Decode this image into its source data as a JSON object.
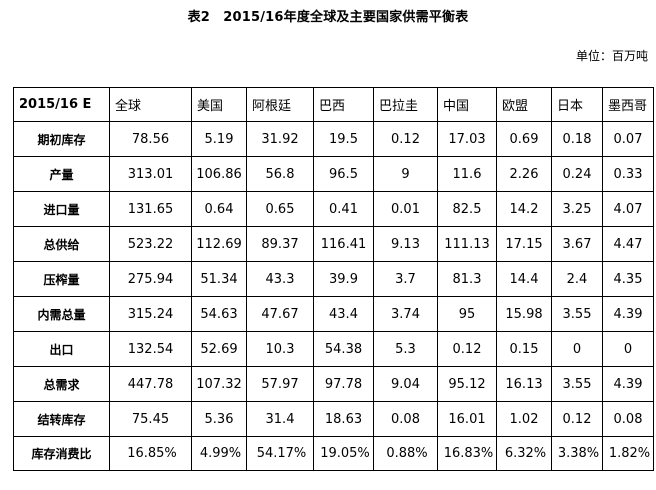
{
  "title": "表2　2015/16年度全球及主要国家供需平衡表",
  "unit": "单位：百万吨",
  "table": {
    "corner": "2015/16 E",
    "columns": [
      "全球",
      "美国",
      "阿根廷",
      "巴西",
      "巴拉圭",
      "中国",
      "欧盟",
      "日本",
      "墨西哥"
    ],
    "rows": [
      {
        "label": "期初库存",
        "values": [
          "78.56",
          "5.19",
          "31.92",
          "19.5",
          "0.12",
          "17.03",
          "0.69",
          "0.18",
          "0.07"
        ]
      },
      {
        "label": "产量",
        "values": [
          "313.01",
          "106.86",
          "56.8",
          "96.5",
          "9",
          "11.6",
          "2.26",
          "0.24",
          "0.33"
        ]
      },
      {
        "label": "进口量",
        "values": [
          "131.65",
          "0.64",
          "0.65",
          "0.41",
          "0.01",
          "82.5",
          "14.2",
          "3.25",
          "4.07"
        ]
      },
      {
        "label": "总供给",
        "values": [
          "523.22",
          "112.69",
          "89.37",
          "116.41",
          "9.13",
          "111.13",
          "17.15",
          "3.67",
          "4.47"
        ]
      },
      {
        "label": "压榨量",
        "values": [
          "275.94",
          "51.34",
          "43.3",
          "39.9",
          "3.7",
          "81.3",
          "14.4",
          "2.4",
          "4.35"
        ]
      },
      {
        "label": "内需总量",
        "values": [
          "315.24",
          "54.63",
          "47.67",
          "43.4",
          "3.74",
          "95",
          "15.98",
          "3.55",
          "4.39"
        ]
      },
      {
        "label": "出口",
        "values": [
          "132.54",
          "52.69",
          "10.3",
          "54.38",
          "5.3",
          "0.12",
          "0.15",
          "0",
          "0"
        ]
      },
      {
        "label": "总需求",
        "values": [
          "447.78",
          "107.32",
          "57.97",
          "97.78",
          "9.04",
          "95.12",
          "16.13",
          "3.55",
          "4.39"
        ]
      },
      {
        "label": "结转库存",
        "values": [
          "75.45",
          "5.36",
          "31.4",
          "18.63",
          "0.08",
          "16.01",
          "1.02",
          "0.12",
          "0.08"
        ]
      },
      {
        "label": "库存消费比",
        "values": [
          "16.85%",
          "4.99%",
          "54.17%",
          "19.05%",
          "0.88%",
          "16.83%",
          "6.32%",
          "3.38%",
          "1.82%"
        ]
      }
    ]
  }
}
